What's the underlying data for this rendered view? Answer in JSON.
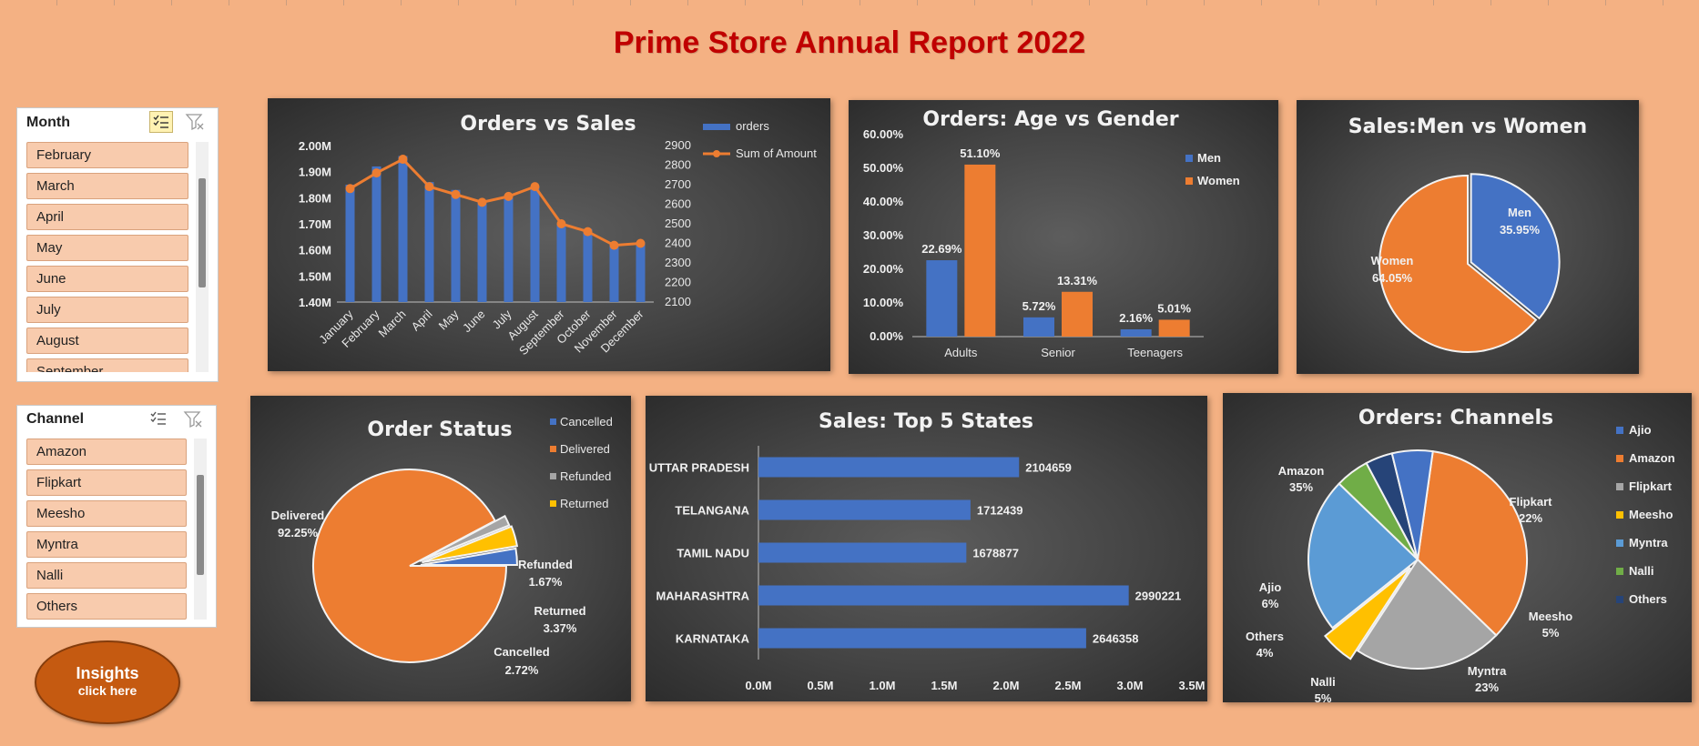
{
  "report_title": "Prime Store Annual Report 2022",
  "colors": {
    "blue": "#4472C4",
    "orange": "#ED7D31",
    "gray": "#A5A5A5",
    "yellow": "#FFC000",
    "lightblue": "#5B9BD5",
    "green": "#70AD47",
    "darkblue": "#264478",
    "accent_title": "#C00000",
    "insights_btn": "#C55A11"
  },
  "slicer_month": {
    "header": "Month",
    "multiselect_icon": "multi-select-icon",
    "clear_filter_icon": "clear-filter-icon",
    "items": [
      "February",
      "March",
      "April",
      "May",
      "June",
      "July",
      "August",
      "September"
    ]
  },
  "slicer_channel": {
    "header": "Channel",
    "multiselect_icon": "multi-select-icon",
    "clear_filter_icon": "clear-filter-icon",
    "items": [
      "Amazon",
      "Flipkart",
      "Meesho",
      "Myntra",
      "Nalli",
      "Others"
    ]
  },
  "insights_button": {
    "line1": "Insights",
    "line2": "click here"
  },
  "chart_data": [
    {
      "id": "orders_vs_sales",
      "type": "bar+line",
      "title": "Orders vs Sales",
      "categories": [
        "January",
        "February",
        "March",
        "April",
        "May",
        "June",
        "July",
        "August",
        "September",
        "October",
        "November",
        "December"
      ],
      "series": [
        {
          "name": "orders",
          "axis": "right",
          "values": [
            2680,
            2760,
            2830,
            2690,
            2650,
            2610,
            2640,
            2690,
            2500,
            2460,
            2390,
            2400
          ]
        },
        {
          "name": "Sum of Amount",
          "axis": "left",
          "values": [
            1850000,
            1920000,
            1960000,
            1860000,
            1830000,
            1780000,
            1800000,
            1840000,
            1700000,
            1680000,
            1620000,
            1630000
          ]
        }
      ],
      "y_left": {
        "min": 1400000,
        "max": 2000000,
        "ticks": [
          "1.40M",
          "1.50M",
          "1.60M",
          "1.70M",
          "1.80M",
          "1.90M",
          "2.00M"
        ]
      },
      "y_right": {
        "min": 2100,
        "max": 2900,
        "ticks": [
          "2100",
          "2200",
          "2300",
          "2400",
          "2500",
          "2600",
          "2700",
          "2800",
          "2900"
        ]
      },
      "legend": [
        "orders",
        "Sum of Amount"
      ],
      "legend_position": "top-right"
    },
    {
      "id": "age_vs_gender",
      "type": "bar",
      "title": "Orders: Age vs Gender",
      "categories": [
        "Adults",
        "Senior",
        "Teenagers"
      ],
      "series": [
        {
          "name": "Men",
          "values": [
            22.69,
            5.72,
            2.16
          ],
          "labels": [
            "22.69%",
            "5.72%",
            "2.16%"
          ]
        },
        {
          "name": "Women",
          "values": [
            51.1,
            13.31,
            5.01
          ],
          "labels": [
            "51.10%",
            "13.31%",
            "5.01%"
          ]
        }
      ],
      "y_ticks": [
        "0.00%",
        "10.00%",
        "20.00%",
        "30.00%",
        "40.00%",
        "50.00%",
        "60.00%"
      ],
      "ylim": [
        0,
        60
      ],
      "legend_position": "right"
    },
    {
      "id": "sales_men_women",
      "type": "pie",
      "title": "Sales:Men vs Women",
      "slices": [
        {
          "name": "Men",
          "value": 35.95,
          "label": "35.95%"
        },
        {
          "name": "Women",
          "value": 64.05,
          "label": "64.05%"
        }
      ]
    },
    {
      "id": "order_status",
      "type": "pie",
      "title": "Order Status",
      "slices": [
        {
          "name": "Cancelled",
          "value": 2.72,
          "label": "2.72%"
        },
        {
          "name": "Delivered",
          "value": 92.25,
          "label": "92.25%"
        },
        {
          "name": "Refunded",
          "value": 1.67,
          "label": "1.67%"
        },
        {
          "name": "Returned",
          "value": 3.37,
          "label": "3.37%"
        }
      ],
      "legend": [
        "Cancelled",
        "Delivered",
        "Refunded",
        "Returned"
      ],
      "legend_position": "top-right"
    },
    {
      "id": "top5_states",
      "type": "bar",
      "orientation": "horizontal",
      "title": "Sales: Top 5 States",
      "categories": [
        "UTTAR PRADESH",
        "TELANGANA",
        "TAMIL NADU",
        "MAHARASHTRA",
        "KARNATAKA"
      ],
      "values": [
        2104659,
        1712439,
        1678877,
        2990221,
        2646358
      ],
      "labels": [
        "2104659",
        "1712439",
        "1678877",
        "2990221",
        "2646358"
      ],
      "xlim": [
        0,
        3500000
      ],
      "x_ticks": [
        "0.0M",
        "0.5M",
        "1.0M",
        "1.5M",
        "2.0M",
        "2.5M",
        "3.0M",
        "3.5M"
      ]
    },
    {
      "id": "orders_channels",
      "type": "pie",
      "title": "Orders: Channels",
      "slices": [
        {
          "name": "Ajio",
          "value": 6,
          "label": "6%"
        },
        {
          "name": "Amazon",
          "value": 35,
          "label": "35%"
        },
        {
          "name": "Flipkart",
          "value": 22,
          "label": "22%"
        },
        {
          "name": "Meesho",
          "value": 5,
          "label": "5%"
        },
        {
          "name": "Myntra",
          "value": 23,
          "label": "23%"
        },
        {
          "name": "Nalli",
          "value": 5,
          "label": "5%"
        },
        {
          "name": "Others",
          "value": 4,
          "label": "4%"
        }
      ],
      "legend": [
        "Ajio",
        "Amazon",
        "Flipkart",
        "Meesho",
        "Myntra",
        "Nalli",
        "Others"
      ],
      "legend_position": "right"
    }
  ]
}
